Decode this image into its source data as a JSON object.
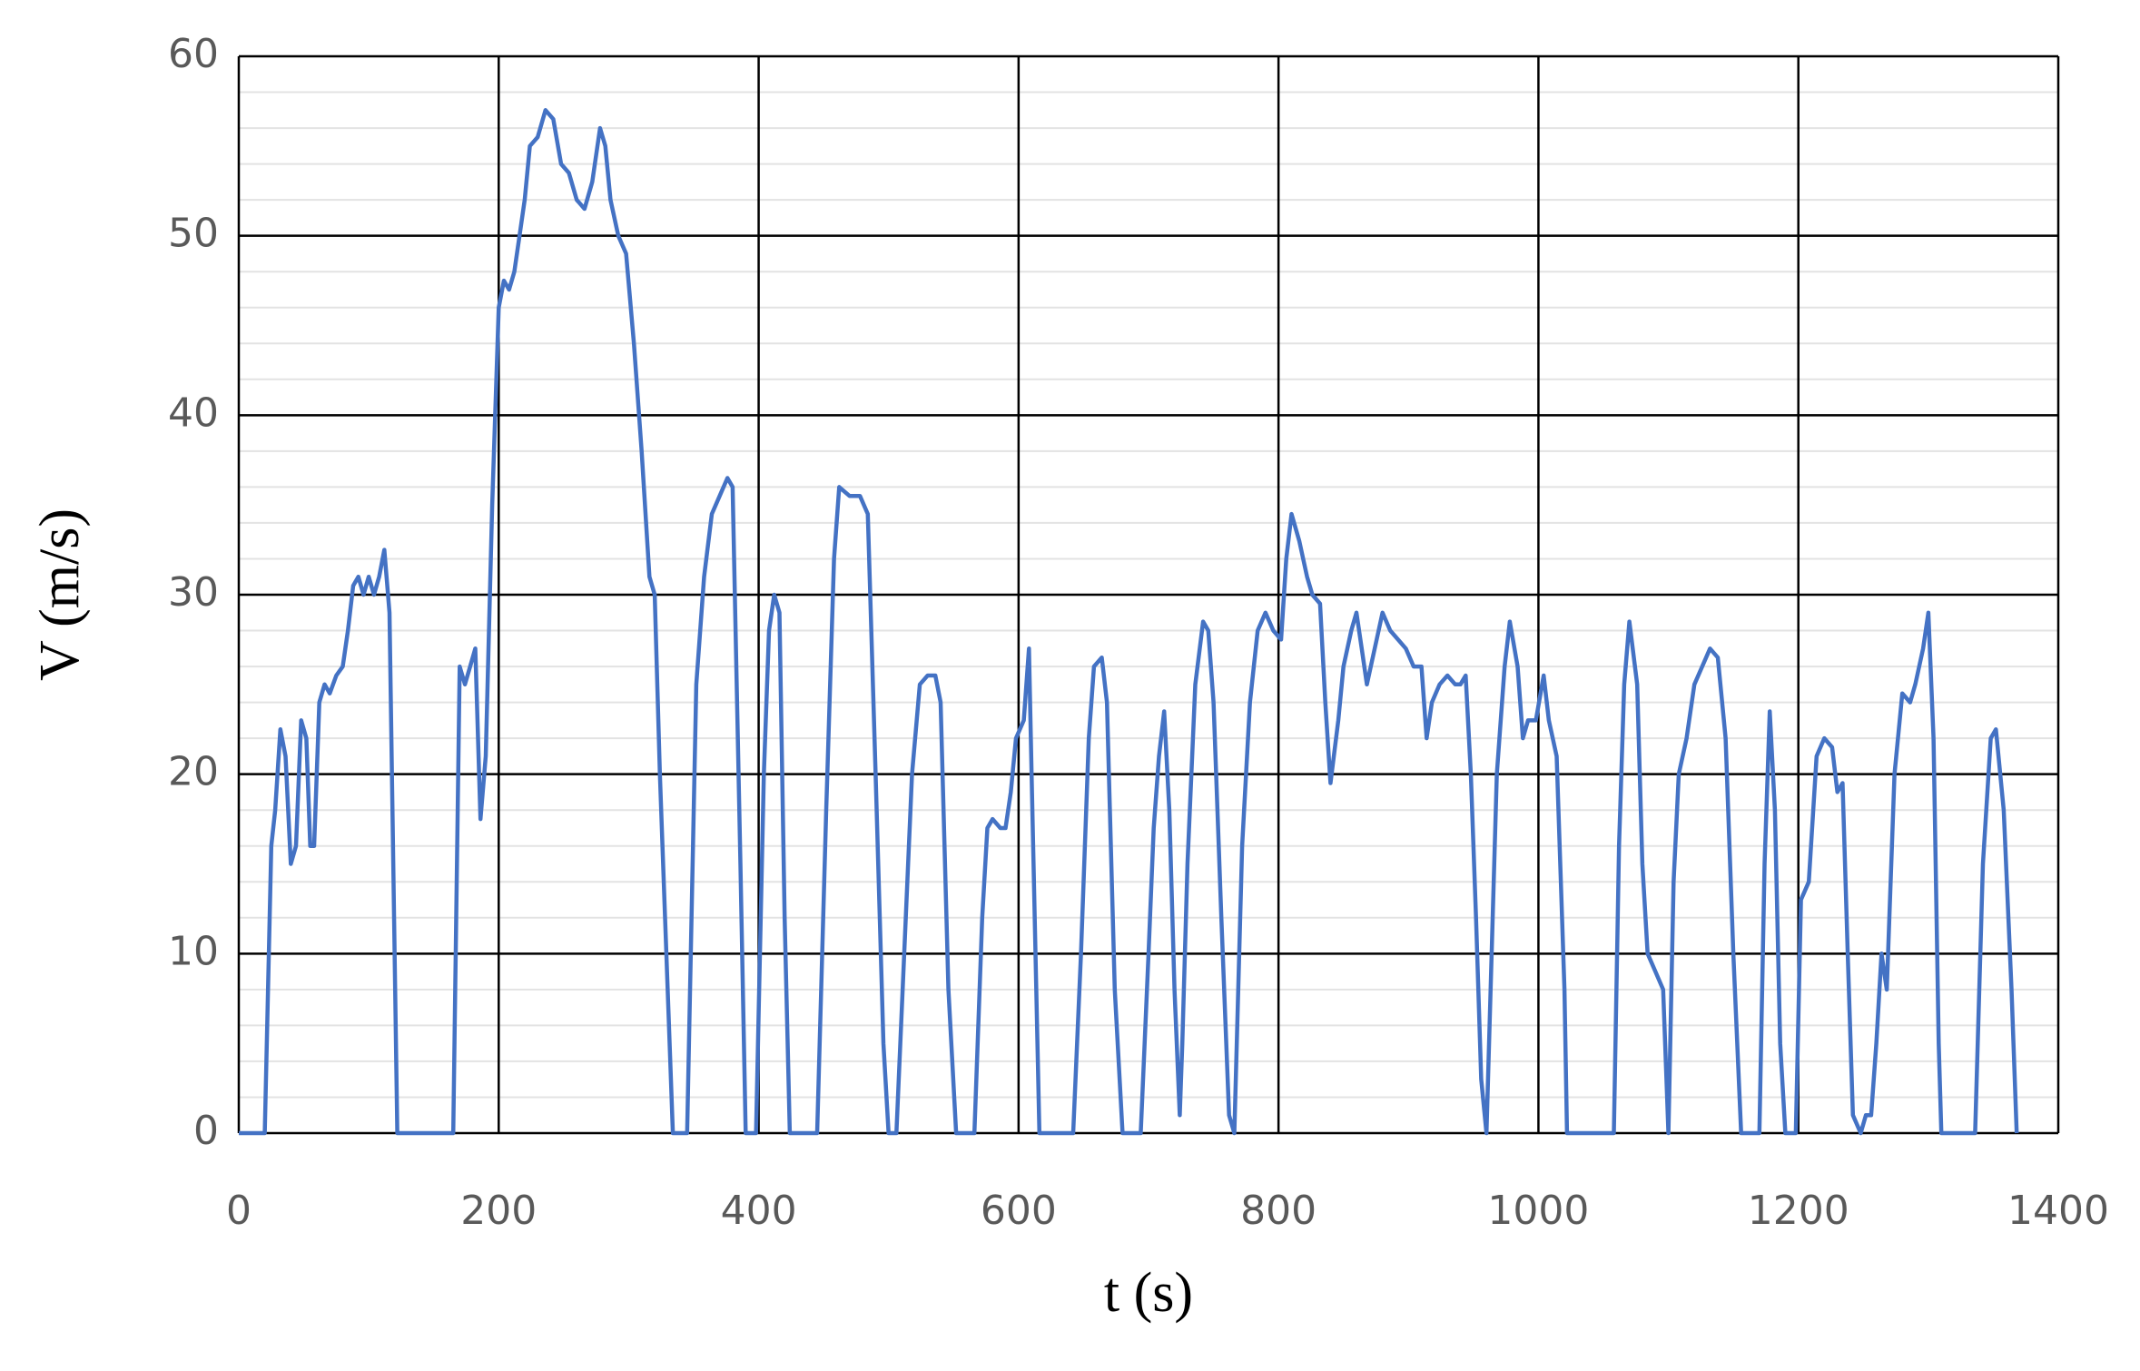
{
  "chart_data": {
    "type": "line",
    "x_label": "t (s)",
    "y_label": "V (m/s)",
    "xlim": [
      0,
      1400
    ],
    "xticks": [
      0,
      200,
      400,
      600,
      800,
      1000,
      1200,
      1400
    ],
    "ylim": [
      0,
      60
    ],
    "yticks": [
      0,
      10,
      20,
      30,
      40,
      50,
      60
    ],
    "grid": true,
    "minor_grid_step": 2,
    "color": "#4472c4",
    "x": [
      0,
      20,
      25,
      28,
      32,
      36,
      40,
      44,
      48,
      52,
      55,
      58,
      62,
      66,
      70,
      75,
      80,
      84,
      88,
      92,
      96,
      100,
      104,
      108,
      112,
      116,
      122,
      165,
      170,
      174,
      178,
      182,
      186,
      190,
      195,
      200,
      204,
      208,
      212,
      216,
      220,
      224,
      230,
      236,
      242,
      248,
      254,
      260,
      266,
      272,
      278,
      282,
      286,
      292,
      298,
      304,
      310,
      316,
      320,
      324,
      328,
      334,
      345,
      352,
      358,
      364,
      370,
      376,
      380,
      386,
      390,
      398,
      404,
      408,
      412,
      416,
      420,
      424,
      445,
      452,
      458,
      462,
      470,
      478,
      484,
      490,
      496,
      500,
      506,
      512,
      518,
      524,
      530,
      536,
      540,
      546,
      552,
      566,
      572,
      576,
      580,
      586,
      590,
      594,
      598,
      604,
      608,
      610,
      616,
      642,
      648,
      654,
      658,
      664,
      668,
      674,
      680,
      694,
      700,
      704,
      708,
      712,
      716,
      720,
      724,
      726,
      730,
      736,
      742,
      746,
      750,
      756,
      762,
      766,
      772,
      778,
      784,
      790,
      796,
      802,
      806,
      810,
      816,
      822,
      826,
      832,
      836,
      840,
      846,
      850,
      856,
      860,
      864,
      868,
      874,
      880,
      886,
      892,
      898,
      904,
      910,
      914,
      918,
      924,
      930,
      936,
      940,
      944,
      948,
      952,
      956,
      960,
      964,
      968,
      974,
      978,
      984,
      988,
      992,
      998,
      1004,
      1008,
      1014,
      1020,
      1022,
      1058,
      1062,
      1066,
      1070,
      1076,
      1080,
      1084,
      1090,
      1096,
      1100,
      1104,
      1108,
      1114,
      1120,
      1126,
      1132,
      1138,
      1144,
      1150,
      1156,
      1170,
      1174,
      1178,
      1182,
      1186,
      1190,
      1198,
      1202,
      1208,
      1214,
      1220,
      1226,
      1230,
      1234,
      1238,
      1242,
      1248,
      1252,
      1256,
      1260,
      1264,
      1268,
      1274,
      1280,
      1286,
      1290,
      1296,
      1300,
      1304,
      1308,
      1310,
      1336,
      1342,
      1348,
      1352,
      1358,
      1364,
      1368
    ],
    "values": [
      0,
      0,
      16,
      18,
      22.5,
      21,
      15,
      16,
      23,
      22,
      16,
      16,
      24,
      25,
      24.5,
      25.5,
      26,
      28,
      30.5,
      31,
      30,
      31,
      30,
      31,
      32.5,
      29,
      0,
      0,
      26,
      25,
      26,
      27,
      17.5,
      21,
      35,
      46,
      47.5,
      47,
      48,
      50,
      52,
      55,
      55.5,
      57,
      56.5,
      54,
      53.5,
      52,
      51.5,
      53,
      56,
      55,
      52,
      50,
      49,
      44,
      38,
      31,
      30,
      20,
      12,
      0,
      0,
      25,
      31,
      34.5,
      35.5,
      36.5,
      36,
      15,
      0,
      0,
      20,
      28,
      30,
      29,
      12,
      0,
      0,
      18,
      32,
      36,
      35.5,
      35.5,
      34.5,
      20,
      5,
      0,
      0,
      10,
      20,
      25,
      25.5,
      25.5,
      24,
      8,
      0,
      0,
      12,
      17,
      17.5,
      17,
      17,
      19,
      22,
      23,
      27,
      20,
      0,
      0,
      10,
      22,
      26,
      26.5,
      24,
      8,
      0,
      0,
      10,
      17,
      21,
      23.5,
      18,
      8,
      1,
      5,
      15,
      25,
      28.5,
      28,
      24,
      12,
      1,
      0,
      16,
      24,
      28,
      29,
      28,
      27.5,
      32,
      34.5,
      33,
      31,
      30,
      29.5,
      24,
      19.5,
      23,
      26,
      28,
      29,
      27,
      25,
      27,
      29,
      28,
      27.5,
      27,
      26,
      26,
      22,
      24,
      25,
      25.5,
      25,
      25,
      25.5,
      20,
      12,
      3,
      0,
      10,
      20,
      26,
      28.5,
      26,
      22,
      23,
      23,
      25.5,
      23,
      21,
      8,
      0,
      0,
      16,
      25,
      28.5,
      25,
      15,
      10,
      9,
      8,
      0,
      14,
      20,
      22,
      25,
      26,
      27,
      26.5,
      22,
      10,
      0,
      0,
      15,
      23.5,
      18,
      5,
      0,
      0,
      13,
      14,
      21,
      22,
      21.5,
      19,
      19.5,
      10,
      1,
      0,
      1,
      1,
      5,
      10,
      8,
      20,
      24.5,
      24,
      25,
      27,
      29,
      22,
      5,
      0,
      0,
      15,
      22,
      22.5,
      18,
      8,
      0
    ]
  }
}
